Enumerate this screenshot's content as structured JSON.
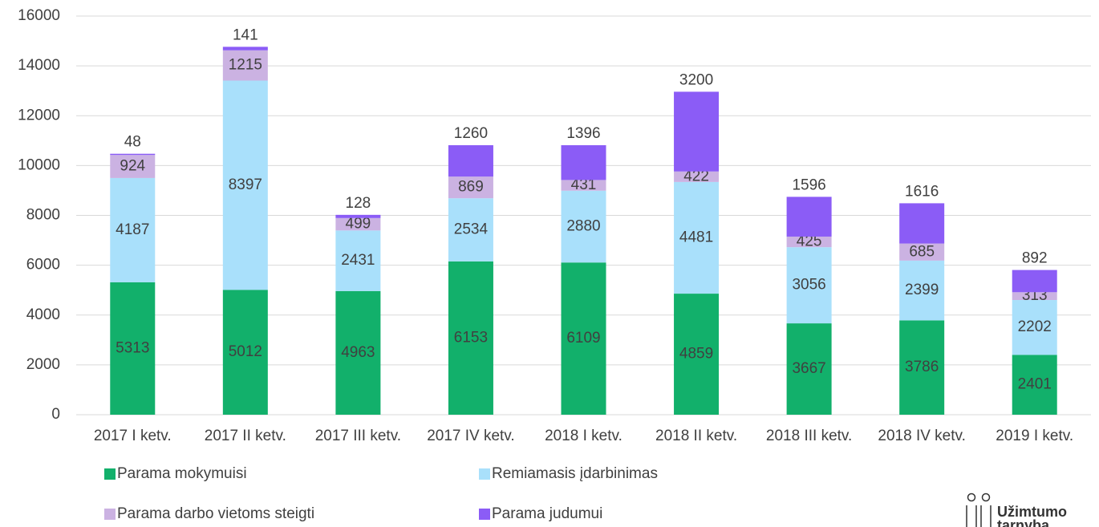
{
  "chart_data": {
    "type": "stacked-bar",
    "categories": [
      "2017 I ketv.",
      "2017 II ketv.",
      "2017 III ketv.",
      "2017 IV ketv.",
      "2018 I ketv.",
      "2018 II ketv.",
      "2018 III ketv.",
      "2018 IV ketv.",
      "2019 I ketv."
    ],
    "series": [
      {
        "name": "Parama mokymuisi",
        "color": "#12b06b",
        "values": [
          5313,
          5012,
          4963,
          6153,
          6109,
          4859,
          3667,
          3786,
          2401
        ]
      },
      {
        "name": "Remiamasis įdarbinimas",
        "color": "#a9e0fb",
        "values": [
          4187,
          8397,
          2431,
          2534,
          2880,
          4481,
          3056,
          2399,
          2202
        ]
      },
      {
        "name": "Parama darbo vietoms steigti",
        "color": "#cbb2e2",
        "values": [
          924,
          1215,
          499,
          869,
          431,
          422,
          425,
          685,
          313
        ]
      },
      {
        "name": "Parama judumui",
        "color": "#8b5cf6",
        "values": [
          48,
          141,
          128,
          1260,
          1396,
          3200,
          1596,
          1616,
          892
        ]
      }
    ],
    "ylim": [
      0,
      16000
    ],
    "yticks": [
      0,
      2000,
      4000,
      6000,
      8000,
      10000,
      12000,
      14000,
      16000
    ],
    "grid": true
  },
  "logo": {
    "line1": "Užimtumo",
    "line2": "tarnyba"
  }
}
